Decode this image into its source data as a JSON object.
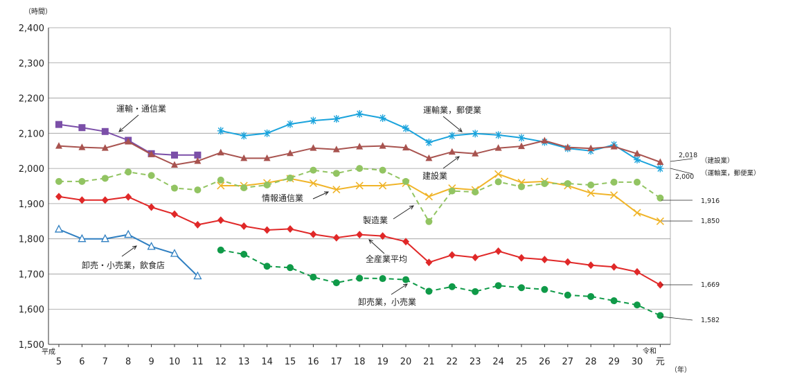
{
  "chart_data": {
    "type": "line",
    "y_unit": "（時間）",
    "x_unit": "（年）",
    "era_heisei": "平成",
    "era_reiwa": "令和",
    "ylim": [
      1500,
      2400
    ],
    "yticks": [
      "1,500",
      "1,600",
      "1,700",
      "1,800",
      "1,900",
      "2,000",
      "2,100",
      "2,200",
      "2,300",
      "2,400"
    ],
    "categories": [
      "5",
      "6",
      "7",
      "8",
      "9",
      "10",
      "11",
      "12",
      "13",
      "14",
      "15",
      "16",
      "17",
      "18",
      "19",
      "20",
      "21",
      "22",
      "23",
      "24",
      "25",
      "26",
      "27",
      "28",
      "29",
      "30",
      "元"
    ],
    "grid": true,
    "series": [
      {
        "name": "運輸・通信業",
        "color": "#7b4fa8",
        "marker": "square",
        "dashed": false,
        "values": [
          2125,
          2116,
          2105,
          2080,
          2042,
          2038,
          2038,
          null,
          null,
          null,
          null,
          null,
          null,
          null,
          null,
          null,
          null,
          null,
          null,
          null,
          null,
          null,
          null,
          null,
          null,
          null,
          null
        ]
      },
      {
        "name": "運輸業，郵便業",
        "color": "#1aa3dc",
        "marker": "asterisk",
        "dashed": false,
        "values": [
          null,
          null,
          null,
          null,
          null,
          null,
          null,
          2107,
          2093,
          2100,
          2126,
          2136,
          2141,
          2155,
          2143,
          2114,
          2074,
          2093,
          2099,
          2095,
          2087,
          2075,
          2057,
          2050,
          2067,
          2025,
          2000
        ]
      },
      {
        "name": "建設業",
        "color": "#a8534f",
        "marker": "triangle",
        "dashed": false,
        "values": [
          2064,
          2060,
          2058,
          2076,
          2040,
          2010,
          2021,
          2045,
          2029,
          2029,
          2043,
          2058,
          2054,
          2062,
          2064,
          2059,
          2029,
          2047,
          2042,
          2058,
          2063,
          2079,
          2060,
          2057,
          2062,
          2042,
          2018
        ]
      },
      {
        "name": "情報通信業",
        "color": "#f0b428",
        "marker": "x",
        "dashed": false,
        "values": [
          null,
          null,
          null,
          null,
          null,
          null,
          null,
          1951,
          1951,
          1959,
          1971,
          1958,
          1940,
          1951,
          1951,
          1958,
          1920,
          1944,
          1939,
          1984,
          1960,
          1963,
          1951,
          1930,
          1924,
          1874,
          1850
        ]
      },
      {
        "name": "製造業",
        "color": "#92c462",
        "marker": "circle",
        "dashed": true,
        "values": [
          1963,
          1963,
          1972,
          1990,
          1980,
          1944,
          1939,
          1967,
          1945,
          1953,
          1973,
          1995,
          1986,
          2000,
          1995,
          1963,
          1849,
          1936,
          1933,
          1962,
          1948,
          1957,
          1957,
          1953,
          1961,
          1961,
          1916
        ]
      },
      {
        "name": "全産業平均",
        "color": "#e02828",
        "marker": "diamond",
        "dashed": false,
        "values": [
          1920,
          1910,
          1910,
          1919,
          1890,
          1870,
          1840,
          1853,
          1836,
          1825,
          1828,
          1813,
          1803,
          1812,
          1808,
          1792,
          1733,
          1754,
          1747,
          1765,
          1746,
          1741,
          1734,
          1725,
          1720,
          1706,
          1669
        ]
      },
      {
        "name": "卸売・小売業，飲食店",
        "color": "#2f7fc1",
        "marker": "triangle-open",
        "dashed": false,
        "values": [
          1827,
          1800,
          1800,
          1812,
          1778,
          1758,
          1694,
          null,
          null,
          null,
          null,
          null,
          null,
          null,
          null,
          null,
          null,
          null,
          null,
          null,
          null,
          null,
          null,
          null,
          null,
          null,
          null
        ]
      },
      {
        "name": "卸売業，小売業",
        "color": "#0f9a48",
        "marker": "circle",
        "dashed": true,
        "values": [
          null,
          null,
          null,
          null,
          null,
          null,
          null,
          1768,
          1756,
          1722,
          1718,
          1691,
          1675,
          1688,
          1687,
          1684,
          1651,
          1664,
          1650,
          1667,
          1661,
          1656,
          1640,
          1636,
          1624,
          1612,
          1582
        ]
      }
    ],
    "annotations": [
      {
        "text": "運輸・通信業",
        "series": "運輸・通信業"
      },
      {
        "text": "運輸業，郵便業",
        "series": "運輸業，郵便業"
      },
      {
        "text": "建設業",
        "series": "建設業"
      },
      {
        "text": "情報通信業",
        "series": "情報通信業"
      },
      {
        "text": "製造業",
        "series": "製造業"
      },
      {
        "text": "全産業平均",
        "series": "全産業平均"
      },
      {
        "text": "卸売・小売業，飲食店",
        "series": "卸売・小売業，飲食店"
      },
      {
        "text": "卸売業，小売業",
        "series": "卸売業，小売業"
      }
    ],
    "end_labels": [
      {
        "value": "2,018",
        "note": "（建設業）"
      },
      {
        "value": "2,000",
        "note": "（運輸業，郵便業）"
      },
      {
        "value": "1,916",
        "note": ""
      },
      {
        "value": "1,850",
        "note": ""
      },
      {
        "value": "1,669",
        "note": ""
      },
      {
        "value": "1,582",
        "note": ""
      }
    ]
  }
}
